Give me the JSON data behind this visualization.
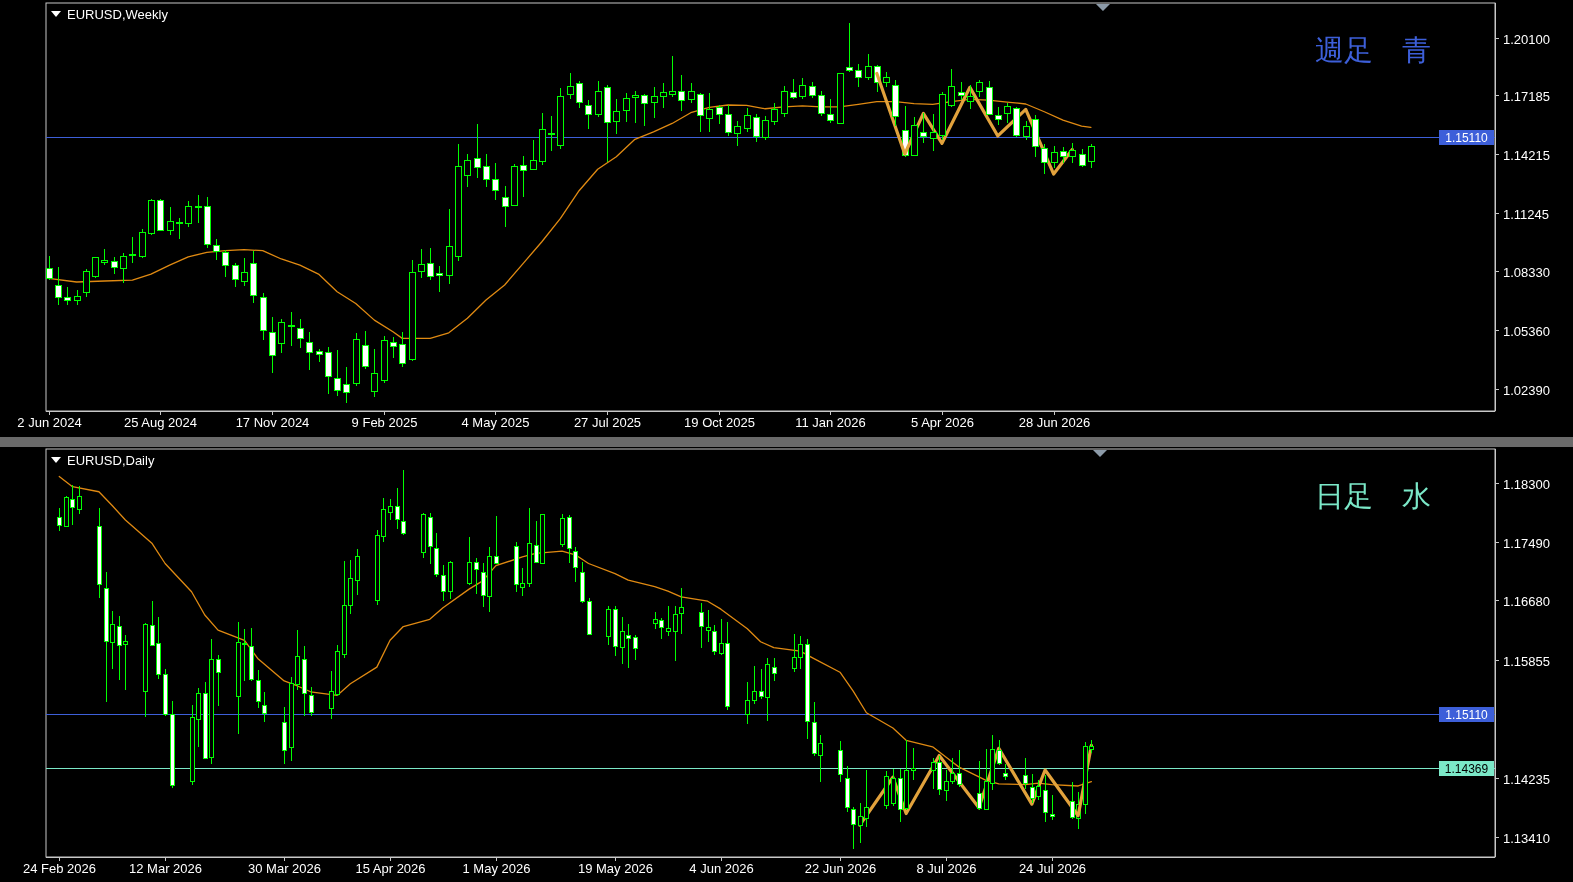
{
  "chart_data": [
    {
      "type": "candlestick",
      "title": "EURUSD,Weekly",
      "color": "#00ff00",
      "x": [
        "2024-06-02",
        "2024-06-09",
        "2024-06-16",
        "2024-06-23",
        "2024-06-30",
        "2024-07-07",
        "2024-07-14",
        "2024-07-21",
        "2024-07-28",
        "2024-08-04",
        "2024-08-11",
        "2024-08-18",
        "2024-08-25",
        "2024-09-01",
        "2024-09-08",
        "2024-09-15",
        "2024-09-22",
        "2024-09-29",
        "2024-10-06",
        "2024-10-13",
        "2024-10-20",
        "2024-10-27",
        "2024-11-03",
        "2024-11-10",
        "2024-11-17",
        "2024-11-24",
        "2024-12-01",
        "2024-12-08",
        "2024-12-15",
        "2024-12-22",
        "2024-12-29",
        "2025-01-05",
        "2025-01-12",
        "2025-01-19",
        "2025-01-26",
        "2025-02-02",
        "2025-02-09",
        "2025-02-16",
        "2025-02-23",
        "2025-03-02",
        "2025-03-09",
        "2025-03-16",
        "2025-03-23",
        "2025-03-30",
        "2025-04-06",
        "2025-04-13",
        "2025-04-20",
        "2025-04-27",
        "2025-05-04",
        "2025-05-11",
        "2025-05-18",
        "2025-05-25",
        "2025-06-01",
        "2025-06-08",
        "2025-06-15",
        "2025-06-22",
        "2025-06-29",
        "2025-07-06",
        "2025-07-13",
        "2025-07-20",
        "2025-07-27",
        "2025-08-03",
        "2025-08-10",
        "2025-08-17",
        "2025-08-24",
        "2025-08-31",
        "2025-09-07",
        "2025-09-14",
        "2025-09-21",
        "2025-09-28",
        "2025-10-05",
        "2025-10-12",
        "2025-10-19",
        "2025-10-26",
        "2025-11-02",
        "2025-11-09",
        "2025-11-16",
        "2025-11-23",
        "2025-11-30",
        "2025-12-07",
        "2025-12-14",
        "2025-12-21",
        "2025-12-28",
        "2026-01-04",
        "2026-01-11",
        "2026-01-18",
        "2026-01-25",
        "2026-02-01",
        "2026-02-08",
        "2026-02-15",
        "2026-02-22",
        "2026-03-01",
        "2026-03-08",
        "2026-03-15",
        "2026-03-22",
        "2026-03-29",
        "2026-04-05",
        "2026-04-12",
        "2026-04-19",
        "2026-04-26",
        "2026-05-03",
        "2026-05-10",
        "2026-05-17",
        "2026-05-24",
        "2026-05-31",
        "2026-06-07",
        "2026-06-14",
        "2026-06-21",
        "2026-06-28",
        "2026-07-05",
        "2026-07-12",
        "2026-07-19",
        "2026-07-26"
      ],
      "ohlc": [
        [
          1.0847,
          1.0909,
          1.0788,
          1.0796
        ],
        [
          1.0759,
          1.0852,
          1.0662,
          1.0699
        ],
        [
          1.0699,
          1.0751,
          1.0662,
          1.0687
        ],
        [
          1.0687,
          1.0737,
          1.0662,
          1.0707
        ],
        [
          1.0726,
          1.0842,
          1.0704,
          1.083
        ],
        [
          1.0808,
          1.0905,
          1.0796,
          1.09
        ],
        [
          1.0877,
          1.0942,
          1.0863,
          1.0884
        ],
        [
          1.088,
          1.0902,
          1.0818,
          1.085
        ],
        [
          1.0847,
          1.0922,
          1.0771,
          1.0905
        ],
        [
          1.091,
          1.1003,
          1.0872,
          1.0917
        ],
        [
          1.0905,
          1.1043,
          1.0897,
          1.1026
        ],
        [
          1.1023,
          1.1196,
          1.1015,
          1.1191
        ],
        [
          1.1191,
          1.1196,
          1.1035,
          1.104
        ],
        [
          1.104,
          1.1154,
          1.1015,
          1.1082
        ],
        [
          1.1073,
          1.1099,
          1.0993,
          1.108
        ],
        [
          1.1073,
          1.1186,
          1.1057,
          1.1157
        ],
        [
          1.1151,
          1.1216,
          1.1077,
          1.1157
        ],
        [
          1.1157,
          1.1208,
          1.0947,
          1.0969
        ],
        [
          1.0964,
          1.0996,
          1.0889,
          1.0931
        ],
        [
          1.0927,
          1.0939,
          1.0805,
          1.086
        ],
        [
          1.0863,
          1.0872,
          1.0751,
          1.0791
        ],
        [
          1.0779,
          1.09,
          1.0759,
          1.0825
        ],
        [
          1.0872,
          1.0936,
          1.0674,
          1.0711
        ],
        [
          1.0699,
          1.0721,
          1.0485,
          1.0536
        ],
        [
          1.0522,
          1.0603,
          1.0322,
          1.0408
        ],
        [
          1.0469,
          1.059,
          1.0418,
          1.0573
        ],
        [
          1.0554,
          1.0625,
          1.0455,
          1.0561
        ],
        [
          1.0544,
          1.059,
          1.0443,
          1.0492
        ],
        [
          1.0474,
          1.0527,
          1.0334,
          1.0422
        ],
        [
          1.0428,
          1.0442,
          1.0376,
          1.0415
        ],
        [
          1.0422,
          1.0452,
          1.0213,
          1.0301
        ],
        [
          1.0292,
          1.0435,
          1.0203,
          1.0233
        ],
        [
          1.0262,
          1.0348,
          1.0166,
          1.022
        ],
        [
          1.0267,
          1.0522,
          1.0254,
          1.0489
        ],
        [
          1.0457,
          1.0531,
          1.0338,
          1.0351
        ],
        [
          1.0228,
          1.0442,
          1.02,
          1.0317
        ],
        [
          1.0284,
          1.0506,
          1.0267,
          1.0482
        ],
        [
          1.0475,
          1.0499,
          1.0393,
          1.0452
        ],
        [
          1.0464,
          1.0524,
          1.0351,
          1.0368
        ],
        [
          1.0388,
          1.0889,
          1.0381,
          1.0825
        ],
        [
          1.083,
          1.0942,
          1.0796,
          1.0867
        ],
        [
          1.0872,
          1.0947,
          1.0788,
          1.0808
        ],
        [
          1.082,
          1.0858,
          1.0726,
          1.0813
        ],
        [
          1.0811,
          1.1144,
          1.0768,
          1.0959
        ],
        [
          1.0909,
          1.1473,
          1.0885,
          1.1359
        ],
        [
          1.1315,
          1.1421,
          1.1258,
          1.1388
        ],
        [
          1.1401,
          1.1572,
          1.13,
          1.1356
        ],
        [
          1.1359,
          1.1421,
          1.1258,
          1.1295
        ],
        [
          1.1297,
          1.1379,
          1.1191,
          1.1241
        ],
        [
          1.1204,
          1.1263,
          1.1057,
          1.1157
        ],
        [
          1.1162,
          1.1372,
          1.1161,
          1.1359
        ],
        [
          1.1364,
          1.1414,
          1.1204,
          1.1339
        ],
        [
          1.1346,
          1.1493,
          1.1342,
          1.1388
        ],
        [
          1.1384,
          1.1631,
          1.1367,
          1.1547
        ],
        [
          1.1522,
          1.1614,
          1.1438,
          1.1527
        ],
        [
          1.1465,
          1.1754,
          1.1446,
          1.1715
        ],
        [
          1.1724,
          1.1833,
          1.17,
          1.1762
        ],
        [
          1.1776,
          1.1791,
          1.1656,
          1.1683
        ],
        [
          1.1665,
          1.1695,
          1.1547,
          1.1623
        ],
        [
          1.1623,
          1.1791,
          1.1611,
          1.174
        ],
        [
          1.1757,
          1.1771,
          1.1384,
          1.1581
        ],
        [
          1.1586,
          1.17,
          1.1524,
          1.1636
        ],
        [
          1.1641,
          1.1729,
          1.1586,
          1.1703
        ],
        [
          1.1708,
          1.1742,
          1.1577,
          1.172
        ],
        [
          1.1719,
          1.1724,
          1.1566,
          1.1678
        ],
        [
          1.1682,
          1.1759,
          1.1603,
          1.1712
        ],
        [
          1.1712,
          1.1782,
          1.1656,
          1.1734
        ],
        [
          1.1724,
          1.1917,
          1.1712,
          1.174
        ],
        [
          1.1737,
          1.1821,
          1.164,
          1.1695
        ],
        [
          1.1698,
          1.1779,
          1.1678,
          1.174
        ],
        [
          1.1725,
          1.1729,
          1.1535,
          1.1616
        ],
        [
          1.1603,
          1.1729,
          1.1535,
          1.1648
        ],
        [
          1.1656,
          1.167,
          1.1572,
          1.1623
        ],
        [
          1.1623,
          1.167,
          1.1514,
          1.153
        ],
        [
          1.1527,
          1.1589,
          1.1465,
          1.1564
        ],
        [
          1.1552,
          1.1656,
          1.1535,
          1.1616
        ],
        [
          1.1606,
          1.1623,
          1.1482,
          1.151
        ],
        [
          1.1505,
          1.1614,
          1.1493,
          1.1594
        ],
        [
          1.1586,
          1.1678,
          1.1569,
          1.1645
        ],
        [
          1.1628,
          1.1766,
          1.1611,
          1.174
        ],
        [
          1.1732,
          1.1799,
          1.1698,
          1.1707
        ],
        [
          1.1712,
          1.1804,
          1.1698,
          1.1769
        ],
        [
          1.1762,
          1.1787,
          1.1707,
          1.172
        ],
        [
          1.172,
          1.174,
          1.1616,
          1.1628
        ],
        [
          1.1623,
          1.1698,
          1.1577,
          1.1591
        ],
        [
          1.1577,
          1.1833,
          1.1574,
          1.1829
        ],
        [
          1.1858,
          1.2085,
          1.1834,
          1.1846
        ],
        [
          1.1846,
          1.1875,
          1.1759,
          1.1809
        ],
        [
          1.1808,
          1.1927,
          1.1796,
          1.1866
        ],
        [
          1.1866,
          1.1871,
          1.1737,
          1.1782
        ],
        [
          1.1784,
          1.1834,
          1.1762,
          1.1809
        ],
        [
          1.1767,
          1.1794,
          1.1564,
          1.1611
        ],
        [
          1.1544,
          1.1665,
          1.1406,
          1.1414
        ],
        [
          1.1418,
          1.1611,
          1.1413,
          1.1569
        ],
        [
          1.1532,
          1.1628,
          1.1477,
          1.151
        ],
        [
          1.15,
          1.1623,
          1.144,
          1.153
        ],
        [
          1.1514,
          1.1737,
          1.1493,
          1.1725
        ],
        [
          1.1665,
          1.185,
          1.1661,
          1.1762
        ],
        [
          1.1732,
          1.1787,
          1.1695,
          1.1717
        ],
        [
          1.169,
          1.1771,
          1.165,
          1.1715
        ],
        [
          1.1737,
          1.1796,
          1.1712,
          1.1782
        ],
        [
          1.1757,
          1.1791,
          1.1619,
          1.1623
        ],
        [
          1.1616,
          1.1661,
          1.1569,
          1.1598
        ],
        [
          1.1628,
          1.1682,
          1.1577,
          1.1661
        ],
        [
          1.1653,
          1.1661,
          1.151,
          1.1514
        ],
        [
          1.151,
          1.1589,
          1.1493,
          1.1561
        ],
        [
          1.1598,
          1.1619,
          1.1409,
          1.146
        ],
        [
          1.1451,
          1.1473,
          1.132,
          1.1381
        ],
        [
          1.1379,
          1.1465,
          1.1351,
          1.143
        ],
        [
          1.1435,
          1.146,
          1.1376,
          1.1413
        ],
        [
          1.1409,
          1.148,
          1.1376,
          1.1443
        ],
        [
          1.1423,
          1.1446,
          1.1356,
          1.1364
        ],
        [
          1.1384,
          1.1472,
          1.1351,
          1.146
        ]
      ],
      "series": [
        {
          "type": "line",
          "color": "#e08a12",
          "x": [
            "2024-06-02",
            "2024-06-23",
            "2024-07-14",
            "2024-08-04",
            "2024-08-18",
            "2024-09-01",
            "2024-09-15",
            "2024-09-29",
            "2024-10-13",
            "2024-10-27",
            "2024-11-10",
            "2024-11-24",
            "2024-12-08",
            "2024-12-22",
            "2025-01-05",
            "2025-01-19",
            "2025-02-02",
            "2025-02-16",
            "2025-02-23",
            "2025-03-02",
            "2025-03-16",
            "2025-03-30",
            "2025-04-13",
            "2025-04-27",
            "2025-05-11",
            "2025-05-25",
            "2025-06-08",
            "2025-06-22",
            "2025-07-06",
            "2025-07-20",
            "2025-08-03",
            "2025-08-17",
            "2025-08-31",
            "2025-09-14",
            "2025-09-28",
            "2025-10-12",
            "2025-10-26",
            "2025-11-09",
            "2025-11-23",
            "2025-12-07",
            "2025-12-21",
            "2026-01-04",
            "2026-01-18",
            "2026-02-01",
            "2026-02-15",
            "2026-03-01",
            "2026-03-15",
            "2026-03-29",
            "2026-04-12",
            "2026-04-26",
            "2026-05-10",
            "2026-05-24",
            "2026-06-07",
            "2026-06-21",
            "2026-07-05",
            "2026-07-19",
            "2026-07-26"
          ],
          "values": [
            1.0796,
            1.0778,
            1.0783,
            1.0788,
            1.0818,
            1.0863,
            1.0905,
            1.0927,
            1.0936,
            1.0941,
            1.0936,
            1.0894,
            1.0863,
            1.0818,
            1.0729,
            1.067,
            1.0586,
            1.0527,
            1.0494,
            1.0494,
            1.0494,
            1.0522,
            1.0595,
            1.0687,
            1.0763,
            1.0872,
            1.0981,
            1.1099,
            1.1238,
            1.1346,
            1.1409,
            1.1497,
            1.1535,
            1.1577,
            1.1631,
            1.1658,
            1.167,
            1.1668,
            1.1651,
            1.1661,
            1.1666,
            1.1661,
            1.1661,
            1.1673,
            1.1687,
            1.1687,
            1.1677,
            1.1673,
            1.1687,
            1.1698,
            1.1695,
            1.1685,
            1.1675,
            1.1636,
            1.1594,
            1.1564,
            1.1557
          ]
        },
        {
          "type": "line",
          "color": "#e2a23c",
          "x": [
            "2026-02-15",
            "2026-03-08",
            "2026-03-22",
            "2026-04-05",
            "2026-04-26",
            "2026-05-17",
            "2026-06-07",
            "2026-06-28",
            "2026-07-12"
          ],
          "values": [
            1.1829,
            1.1423,
            1.1628,
            1.1477,
            1.1759,
            1.1514,
            1.1648,
            1.1322,
            1.1446
          ]
        }
      ],
      "xlim": [
        "2024-05-31",
        "2027-05-26"
      ],
      "xticks": [
        {
          "value": "2024-06-02",
          "label": "2 Jun 2024"
        },
        {
          "value": "2024-08-25",
          "label": "25 Aug 2024"
        },
        {
          "value": "2024-11-17",
          "label": "17 Nov 2024"
        },
        {
          "value": "2025-02-09",
          "label": "9 Feb 2025"
        },
        {
          "value": "2025-05-04",
          "label": "4 May 2025"
        },
        {
          "value": "2025-07-27",
          "label": "27 Jul 2025"
        },
        {
          "value": "2025-10-19",
          "label": "19 Oct 2025"
        },
        {
          "value": "2026-01-11",
          "label": "11 Jan 2026"
        },
        {
          "value": "2026-04-05",
          "label": "5 Apr 2026"
        },
        {
          "value": "2026-06-28",
          "label": "28 Jun 2026"
        }
      ],
      "ylim": [
        1.0128,
        1.2184
      ],
      "yticks": [
        {
          "value": 1.201,
          "label": "1.20100"
        },
        {
          "value": 1.17185,
          "label": "1.17185"
        },
        {
          "value": 1.14215,
          "label": "1.14215"
        },
        {
          "value": 1.11245,
          "label": "1.11245"
        },
        {
          "value": 1.0833,
          "label": "1.08330"
        },
        {
          "value": 1.0536,
          "label": "1.05360"
        },
        {
          "value": 1.0239,
          "label": "1.02390"
        }
      ],
      "ref_lines": [
        {
          "axis": "y",
          "value": 1.1511,
          "label": "1.15110",
          "color": "#3d5fd9"
        }
      ],
      "annotations": [
        "週足　青"
      ]
    },
    {
      "type": "candlestick",
      "title": "EURUSD,Daily",
      "color": "#00ff00",
      "x": [
        "2026-02-24",
        "2026-02-25",
        "2026-02-26",
        "2026-02-27",
        "2026-03-02",
        "2026-03-03",
        "2026-03-04",
        "2026-03-05",
        "2026-03-06",
        "2026-03-09",
        "2026-03-10",
        "2026-03-11",
        "2026-03-12",
        "2026-03-13",
        "2026-03-16",
        "2026-03-17",
        "2026-03-18",
        "2026-03-19",
        "2026-03-20",
        "2026-03-23",
        "2026-03-24",
        "2026-03-25",
        "2026-03-26",
        "2026-03-27",
        "2026-03-30",
        "2026-03-31",
        "2026-04-01",
        "2026-04-02",
        "2026-04-03",
        "2026-04-06",
        "2026-04-07",
        "2026-04-08",
        "2026-04-09",
        "2026-04-10",
        "2026-04-13",
        "2026-04-14",
        "2026-04-15",
        "2026-04-16",
        "2026-04-17",
        "2026-04-20",
        "2026-04-21",
        "2026-04-22",
        "2026-04-23",
        "2026-04-24",
        "2026-04-27",
        "2026-04-28",
        "2026-04-29",
        "2026-04-30",
        "2026-05-01",
        "2026-05-04",
        "2026-05-05",
        "2026-05-06",
        "2026-05-07",
        "2026-05-08",
        "2026-05-11",
        "2026-05-12",
        "2026-05-13",
        "2026-05-14",
        "2026-05-15",
        "2026-05-18",
        "2026-05-19",
        "2026-05-20",
        "2026-05-21",
        "2026-05-22",
        "2026-05-25",
        "2026-05-26",
        "2026-05-27",
        "2026-05-28",
        "2026-05-29",
        "2026-06-01",
        "2026-06-02",
        "2026-06-03",
        "2026-06-04",
        "2026-06-05",
        "2026-06-08",
        "2026-06-09",
        "2026-06-10",
        "2026-06-11",
        "2026-06-12",
        "2026-06-15",
        "2026-06-16",
        "2026-06-17",
        "2026-06-18",
        "2026-06-19",
        "2026-06-22",
        "2026-06-23",
        "2026-06-24",
        "2026-06-25",
        "2026-06-26",
        "2026-06-29",
        "2026-06-30",
        "2026-07-01",
        "2026-07-02",
        "2026-07-03",
        "2026-07-06",
        "2026-07-07",
        "2026-07-08",
        "2026-07-09",
        "2026-07-10",
        "2026-07-13",
        "2026-07-14",
        "2026-07-15",
        "2026-07-16",
        "2026-07-17",
        "2026-07-20",
        "2026-07-21",
        "2026-07-22",
        "2026-07-23",
        "2026-07-24",
        "2026-07-27",
        "2026-07-28",
        "2026-07-29",
        "2026-07-30"
      ],
      "ohlc": [
        [
          1.1783,
          1.1795,
          1.1764,
          1.1772
        ],
        [
          1.177,
          1.1812,
          1.1769,
          1.181
        ],
        [
          1.1807,
          1.1827,
          1.1772,
          1.1796
        ],
        [
          1.1793,
          1.1826,
          1.1787,
          1.1811
        ],
        [
          1.177,
          1.1795,
          1.1671,
          1.169
        ],
        [
          1.1684,
          1.1707,
          1.1528,
          1.1612
        ],
        [
          1.161,
          1.1654,
          1.1573,
          1.1635
        ],
        [
          1.1632,
          1.1647,
          1.1558,
          1.1606
        ],
        [
          1.1607,
          1.162,
          1.1544,
          1.1612
        ],
        [
          1.1543,
          1.1637,
          1.1507,
          1.1635
        ],
        [
          1.1633,
          1.1667,
          1.1605,
          1.1606
        ],
        [
          1.1608,
          1.1645,
          1.156,
          1.1566
        ],
        [
          1.1566,
          1.1574,
          1.1509,
          1.151
        ],
        [
          1.151,
          1.1529,
          1.1409,
          1.1413
        ],
        [
          1.1418,
          1.1524,
          1.1414,
          1.1506
        ],
        [
          1.1504,
          1.1547,
          1.1466,
          1.154
        ],
        [
          1.154,
          1.1556,
          1.1449,
          1.145
        ],
        [
          1.1451,
          1.1615,
          1.1443,
          1.1587
        ],
        [
          1.1586,
          1.1593,
          1.1523,
          1.1569
        ],
        [
          1.1536,
          1.1638,
          1.1484,
          1.161
        ],
        [
          1.1607,
          1.1628,
          1.1557,
          1.1608
        ],
        [
          1.1605,
          1.163,
          1.1557,
          1.1559
        ],
        [
          1.1557,
          1.1572,
          1.1519,
          1.1529
        ],
        [
          1.1523,
          1.1542,
          1.15,
          1.1512
        ],
        [
          1.15,
          1.1521,
          1.1442,
          1.1461
        ],
        [
          1.1465,
          1.1563,
          1.1446,
          1.1553
        ],
        [
          1.1552,
          1.1627,
          1.1544,
          1.159
        ],
        [
          1.1587,
          1.1605,
          1.1509,
          1.154
        ],
        [
          1.1537,
          1.1549,
          1.1509,
          1.1513
        ],
        [
          1.1519,
          1.157,
          1.1504,
          1.1542
        ],
        [
          1.1538,
          1.1606,
          1.1536,
          1.1597
        ],
        [
          1.1593,
          1.1722,
          1.1588,
          1.1661
        ],
        [
          1.1661,
          1.1724,
          1.1649,
          1.1698
        ],
        [
          1.1696,
          1.1739,
          1.1676,
          1.1728
        ],
        [
          1.1668,
          1.1765,
          1.1662,
          1.1758
        ],
        [
          1.1756,
          1.181,
          1.1749,
          1.1793
        ],
        [
          1.179,
          1.1808,
          1.1779,
          1.1798
        ],
        [
          1.1798,
          1.1823,
          1.1766,
          1.178
        ],
        [
          1.1777,
          1.1848,
          1.1759,
          1.176
        ],
        [
          1.1734,
          1.1789,
          1.1727,
          1.1786
        ],
        [
          1.1782,
          1.1789,
          1.1718,
          1.1743
        ],
        [
          1.174,
          1.1761,
          1.1701,
          1.1704
        ],
        [
          1.1703,
          1.1717,
          1.1667,
          1.1681
        ],
        [
          1.1681,
          1.1722,
          1.167,
          1.1721
        ],
        [
          1.1691,
          1.1755,
          1.1689,
          1.172
        ],
        [
          1.172,
          1.1727,
          1.1677,
          1.1711
        ],
        [
          1.1707,
          1.172,
          1.1659,
          1.1675
        ],
        [
          1.1674,
          1.1742,
          1.1652,
          1.1729
        ],
        [
          1.1729,
          1.1785,
          1.1718,
          1.1719
        ],
        [
          1.1743,
          1.1748,
          1.168,
          1.169
        ],
        [
          1.1686,
          1.1713,
          1.1674,
          1.1691
        ],
        [
          1.1691,
          1.1796,
          1.1687,
          1.1746
        ],
        [
          1.1744,
          1.1778,
          1.172,
          1.1721
        ],
        [
          1.1719,
          1.1787,
          1.1718,
          1.1786
        ],
        [
          1.1745,
          1.1787,
          1.1742,
          1.1781
        ],
        [
          1.1782,
          1.1786,
          1.172,
          1.174
        ],
        [
          1.1735,
          1.1742,
          1.1694,
          1.1713
        ],
        [
          1.1707,
          1.1721,
          1.1664,
          1.1667
        ],
        [
          1.1667,
          1.1672,
          1.162,
          1.1621
        ],
        [
          1.1618,
          1.166,
          1.1606,
          1.1655
        ],
        [
          1.1655,
          1.1661,
          1.1591,
          1.1605
        ],
        [
          1.1603,
          1.1645,
          1.1581,
          1.1625
        ],
        [
          1.162,
          1.1635,
          1.1575,
          1.1616
        ],
        [
          1.1617,
          1.162,
          1.1586,
          1.1602
        ],
        [
          1.1636,
          1.1652,
          1.1628,
          1.1642
        ],
        [
          1.164,
          1.1644,
          1.1615,
          1.163
        ],
        [
          1.1625,
          1.166,
          1.1619,
          1.1629
        ],
        [
          1.1625,
          1.166,
          1.1585,
          1.1649
        ],
        [
          1.165,
          1.1685,
          1.1622,
          1.1658
        ],
        [
          1.1651,
          1.1664,
          1.1603,
          1.1632
        ],
        [
          1.1626,
          1.1655,
          1.1611,
          1.163
        ],
        [
          1.1625,
          1.1634,
          1.1593,
          1.1597
        ],
        [
          1.1595,
          1.1643,
          1.1593,
          1.1609
        ],
        [
          1.1608,
          1.1638,
          1.1517,
          1.1521
        ],
        [
          1.151,
          1.1555,
          1.1498,
          1.153
        ],
        [
          1.153,
          1.1578,
          1.1525,
          1.1542
        ],
        [
          1.1542,
          1.1573,
          1.1532,
          1.1536
        ],
        [
          1.1534,
          1.1589,
          1.1502,
          1.1579
        ],
        [
          1.1575,
          1.1589,
          1.1557,
          1.1567
        ],
        [
          1.1574,
          1.1622,
          1.1569,
          1.1589
        ],
        [
          1.1589,
          1.1619,
          1.1573,
          1.1607
        ],
        [
          1.1607,
          1.1615,
          1.1477,
          1.1501
        ],
        [
          1.15,
          1.1528,
          1.1454,
          1.1457
        ],
        [
          1.1454,
          1.1482,
          1.1418,
          1.1471
        ],
        [
          1.1461,
          1.1474,
          1.1418,
          1.1428
        ],
        [
          1.1422,
          1.144,
          1.1376,
          1.1382
        ],
        [
          1.1379,
          1.1383,
          1.1325,
          1.1359
        ],
        [
          1.1358,
          1.1389,
          1.1333,
          1.137
        ],
        [
          1.1367,
          1.1434,
          1.1356,
          1.1382
        ],
        [
          1.1385,
          1.1432,
          1.138,
          1.1425
        ],
        [
          1.1388,
          1.1436,
          1.1385,
          1.1422
        ],
        [
          1.1423,
          1.1436,
          1.1362,
          1.1379
        ],
        [
          1.1381,
          1.1475,
          1.1379,
          1.1433
        ],
        [
          1.1433,
          1.1464,
          1.142,
          1.1436
        ],
        [
          1.1434,
          1.145,
          1.1408,
          1.1445
        ],
        [
          1.1445,
          1.1454,
          1.1399,
          1.1407
        ],
        [
          1.1406,
          1.1434,
          1.1391,
          1.1418
        ],
        [
          1.1418,
          1.145,
          1.1415,
          1.1429
        ],
        [
          1.1429,
          1.1461,
          1.1411,
          1.1414
        ],
        [
          1.1402,
          1.1446,
          1.1379,
          1.1381
        ],
        [
          1.138,
          1.1463,
          1.1379,
          1.1418
        ],
        [
          1.1415,
          1.1483,
          1.1406,
          1.1463
        ],
        [
          1.1461,
          1.1476,
          1.1441,
          1.1443
        ],
        [
          1.1429,
          1.1442,
          1.142,
          1.1425
        ],
        [
          1.1426,
          1.145,
          1.1408,
          1.1415
        ],
        [
          1.141,
          1.1428,
          1.1388,
          1.1395
        ],
        [
          1.1398,
          1.142,
          1.1392,
          1.1411
        ],
        [
          1.1406,
          1.1427,
          1.1362,
          1.1376
        ],
        [
          1.1373,
          1.1399,
          1.1365,
          1.137
        ],
        [
          1.139,
          1.1418,
          1.1367,
          1.1369
        ],
        [
          1.1367,
          1.1404,
          1.1353,
          1.1386
        ],
        [
          1.1386,
          1.1472,
          1.1374,
          1.1466
        ],
        [
          1.1463,
          1.1475,
          1.1457,
          1.1466
        ]
      ],
      "series": [
        {
          "type": "line",
          "color": "#e08a12",
          "x": [
            "2026-02-24",
            "2026-02-26",
            "2026-03-02",
            "2026-03-04",
            "2026-03-06",
            "2026-03-10",
            "2026-03-12",
            "2026-03-16",
            "2026-03-18",
            "2026-03-20",
            "2026-03-24",
            "2026-03-26",
            "2026-03-30",
            "2026-04-01",
            "2026-04-03",
            "2026-04-07",
            "2026-04-09",
            "2026-04-13",
            "2026-04-15",
            "2026-04-17",
            "2026-04-21",
            "2026-04-23",
            "2026-04-27",
            "2026-04-29",
            "2026-05-01",
            "2026-05-05",
            "2026-05-07",
            "2026-05-11",
            "2026-05-13",
            "2026-05-15",
            "2026-05-19",
            "2026-05-21",
            "2026-05-25",
            "2026-05-27",
            "2026-05-29",
            "2026-06-02",
            "2026-06-04",
            "2026-06-08",
            "2026-06-10",
            "2026-06-12",
            "2026-06-16",
            "2026-06-18",
            "2026-06-22",
            "2026-06-24",
            "2026-06-26",
            "2026-06-30",
            "2026-07-02",
            "2026-07-06",
            "2026-07-08",
            "2026-07-10",
            "2026-07-14",
            "2026-07-16",
            "2026-07-20",
            "2026-07-22",
            "2026-07-24",
            "2026-07-28",
            "2026-07-30"
          ],
          "values": [
            1.1839,
            1.1825,
            1.1818,
            1.1799,
            1.1779,
            1.1747,
            1.1719,
            1.168,
            1.1648,
            1.1627,
            1.1613,
            1.1588,
            1.1557,
            1.155,
            1.1542,
            1.1537,
            1.1553,
            1.1576,
            1.1613,
            1.1632,
            1.1642,
            1.1658,
            1.1684,
            1.1695,
            1.1716,
            1.1728,
            1.1733,
            1.1736,
            1.1731,
            1.1719,
            1.1705,
            1.1696,
            1.1687,
            1.1681,
            1.1673,
            1.1667,
            1.1656,
            1.1629,
            1.1611,
            1.1603,
            1.1598,
            1.1588,
            1.1569,
            1.1543,
            1.1513,
            1.1492,
            1.1475,
            1.1466,
            1.1452,
            1.1438,
            1.142,
            1.1415,
            1.1414,
            1.1416,
            1.1414,
            1.1412,
            1.1418
          ]
        },
        {
          "type": "line",
          "color": "#e2a23c",
          "x": [
            "2026-06-25",
            "2026-06-30",
            "2026-07-02",
            "2026-07-07",
            "2026-07-13",
            "2026-07-16",
            "2026-07-21",
            "2026-07-23",
            "2026-07-28",
            "2026-07-30"
          ],
          "values": [
            1.1358,
            1.1424,
            1.1374,
            1.1454,
            1.1382,
            1.1464,
            1.1387,
            1.1434,
            1.1371,
            1.1468
          ]
        }
      ],
      "xlim": [
        "2026-02-22",
        "2026-09-29"
      ],
      "xticks": [
        {
          "value": "2026-02-24",
          "label": "24 Feb 2026"
        },
        {
          "value": "2026-03-12",
          "label": "12 Mar 2026"
        },
        {
          "value": "2026-03-30",
          "label": "30 Mar 2026"
        },
        {
          "value": "2026-04-15",
          "label": "15 Apr 2026"
        },
        {
          "value": "2026-05-01",
          "label": "1 May 2026"
        },
        {
          "value": "2026-05-19",
          "label": "19 May 2026"
        },
        {
          "value": "2026-06-04",
          "label": "4 Jun 2026"
        },
        {
          "value": "2026-06-22",
          "label": "22 Jun 2026"
        },
        {
          "value": "2026-07-08",
          "label": "8 Jul 2026"
        },
        {
          "value": "2026-07-24",
          "label": "24 Jul 2026"
        }
      ],
      "ylim": [
        1.1314,
        1.1877
      ],
      "yticks": [
        {
          "value": 1.183,
          "label": "1.18300"
        },
        {
          "value": 1.1749,
          "label": "1.17490"
        },
        {
          "value": 1.1668,
          "label": "1.16680"
        },
        {
          "value": 1.15855,
          "label": "1.15855"
        },
        {
          "value": 1.14235,
          "label": "1.14235"
        },
        {
          "value": 1.1341,
          "label": "1.13410"
        }
      ],
      "ref_lines": [
        {
          "axis": "y",
          "value": 1.1511,
          "label": "1.15110",
          "color": "#3d5fd9"
        },
        {
          "axis": "y",
          "value": 1.14369,
          "label": "1.14369",
          "color": "#7be8c8"
        }
      ],
      "annotations": [
        "日足　水"
      ]
    }
  ]
}
